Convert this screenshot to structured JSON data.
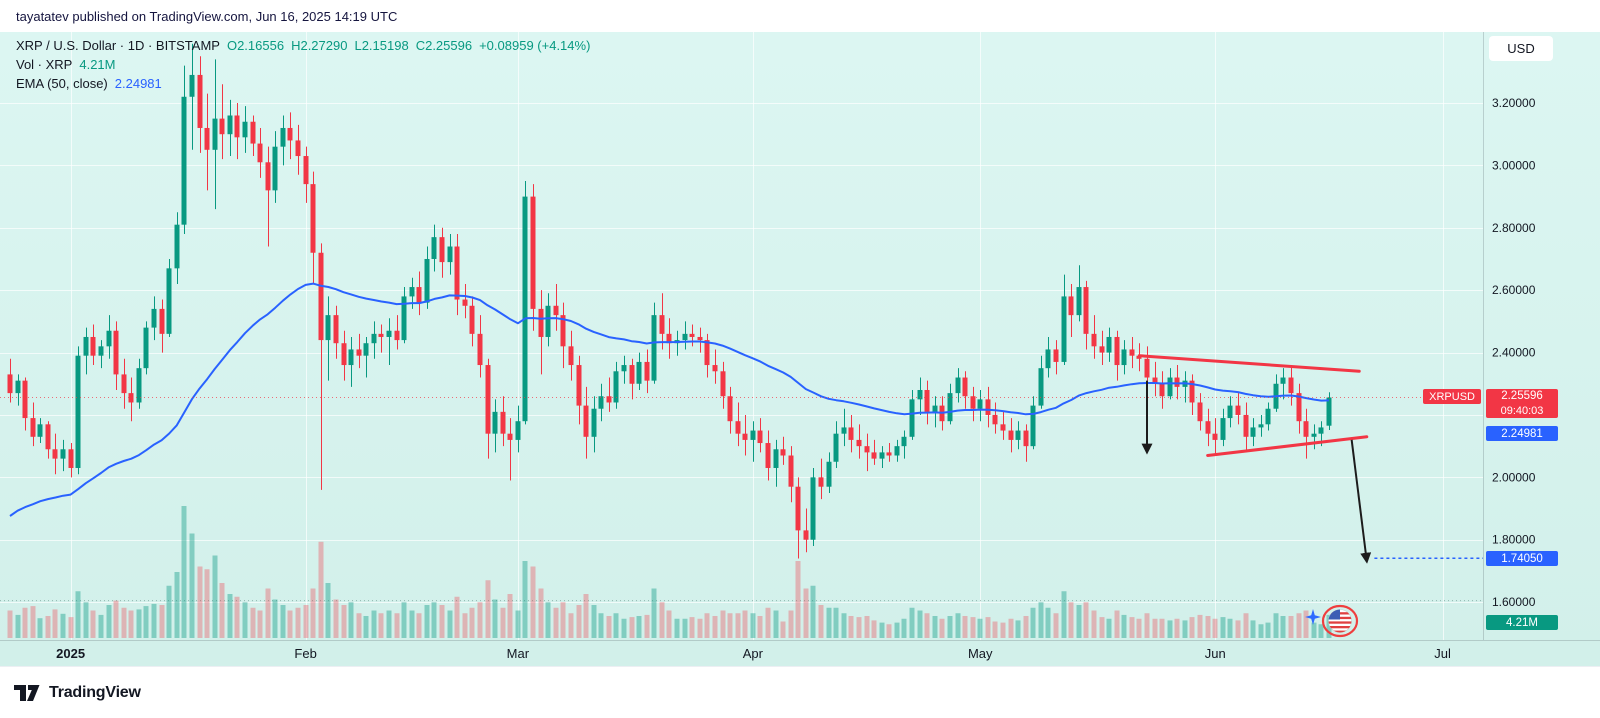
{
  "header": {
    "published_line": "tayatatev published on TradingView.com, Jun 16, 2025 14:19 UTC"
  },
  "toolbar": {
    "currency_button": "USD"
  },
  "legend": {
    "symbol_line": {
      "title": "XRP / U.S. Dollar · 1D · BITSTAMP",
      "items": [
        {
          "label": "O",
          "value": "2.16556"
        },
        {
          "label": "H",
          "value": "2.27290"
        },
        {
          "label": "L",
          "value": "2.15198"
        },
        {
          "label": "C",
          "value": "2.25596"
        }
      ],
      "change": "+0.08959 (+4.14%)"
    },
    "volume_line": {
      "label": "Vol · XRP",
      "value": "4.21M"
    },
    "ema_line": {
      "label": "EMA (50, close)",
      "value": "2.24981"
    }
  },
  "axis": {
    "labels": {
      "symbol_badge": "XRPUSD",
      "last_price": "2.25596",
      "countdown": "09:40:03",
      "ema_value": "2.24981",
      "target_price": "1.74050",
      "volume_value": "4.21M"
    }
  },
  "footer": {
    "brand": "TradingView"
  },
  "colors": {
    "up": "#089981",
    "down": "#f23645",
    "vol_up": "rgba(8,153,129,0.40)",
    "vol_down": "rgba(242,54,69,0.32)",
    "ema": "#2962ff",
    "annotation": "#f23645",
    "arrow": "#1c1c1c",
    "target": "#2962ff",
    "grid": "rgba(255,255,255,0.68)",
    "axis_text": "#131722",
    "separator": "rgba(30,40,50,0.18)",
    "last_price_line": "rgba(242,54,69,0.70)",
    "level_line": "rgba(60,110,100,0.45)"
  },
  "chart_data": {
    "type": "candlestick",
    "title": "XRP / U.S. Dollar · 1D · BITSTAMP",
    "symbol": "XRPUSD",
    "interval": "1D",
    "exchange": "BITSTAMP",
    "start_date": "2024-12-24",
    "end_date": "2025-06-16",
    "last": {
      "o": 2.16556,
      "h": 2.2729,
      "l": 2.15198,
      "c": 2.25596,
      "change": 0.08959,
      "change_pct": 4.14,
      "volume": "4.21M"
    },
    "y_axis": {
      "range": [
        1.485,
        3.402
      ],
      "ticks": [
        3.2,
        3.0,
        2.8,
        2.6,
        2.4,
        2.0,
        1.8,
        1.6
      ],
      "tick_labels": [
        "3.20000",
        "3.00000",
        "2.80000",
        "2.60000",
        "2.40000",
        "2.00000",
        "1.80000",
        "1.60000"
      ],
      "grid": [
        3.2,
        3.0,
        2.8,
        2.6,
        2.4,
        2.2,
        2.0,
        1.8,
        1.6
      ]
    },
    "x_axis": {
      "ticks": [
        {
          "label": "2025",
          "index": 8,
          "bold": true
        },
        {
          "label": "Feb",
          "index": 39
        },
        {
          "label": "Mar",
          "index": 67
        },
        {
          "label": "Apr",
          "index": 98
        },
        {
          "label": "May",
          "index": 128
        },
        {
          "label": "Jun",
          "index": 159
        },
        {
          "label": "Jul",
          "index": 189
        }
      ]
    },
    "ema": {
      "period": 50,
      "seed": 1.86,
      "last_value": 2.24981
    },
    "ohlcv": [
      [
        2.33,
        2.38,
        2.24,
        2.27,
        5.0
      ],
      [
        2.27,
        2.33,
        2.23,
        2.31,
        4.2
      ],
      [
        2.31,
        2.32,
        2.15,
        2.19,
        5.5
      ],
      [
        2.19,
        2.24,
        2.1,
        2.13,
        5.8
      ],
      [
        2.13,
        2.19,
        2.11,
        2.17,
        3.6
      ],
      [
        2.17,
        2.18,
        2.06,
        2.09,
        4.0
      ],
      [
        2.09,
        2.14,
        2.01,
        2.06,
        5.2
      ],
      [
        2.06,
        2.12,
        2.02,
        2.09,
        4.4
      ],
      [
        2.09,
        2.11,
        2.0,
        2.03,
        3.8
      ],
      [
        2.03,
        2.42,
        2.01,
        2.39,
        8.5
      ],
      [
        2.39,
        2.48,
        2.33,
        2.45,
        6.5
      ],
      [
        2.45,
        2.49,
        2.36,
        2.39,
        5.0
      ],
      [
        2.39,
        2.44,
        2.35,
        2.42,
        4.2
      ],
      [
        2.42,
        2.52,
        2.38,
        2.47,
        6.0
      ],
      [
        2.47,
        2.5,
        2.28,
        2.33,
        6.8
      ],
      [
        2.33,
        2.38,
        2.22,
        2.27,
        5.5
      ],
      [
        2.27,
        2.32,
        2.18,
        2.24,
        5.0
      ],
      [
        2.24,
        2.38,
        2.22,
        2.35,
        5.2
      ],
      [
        2.35,
        2.5,
        2.33,
        2.48,
        5.8
      ],
      [
        2.48,
        2.58,
        2.44,
        2.54,
        6.2
      ],
      [
        2.54,
        2.57,
        2.4,
        2.46,
        6.0
      ],
      [
        2.46,
        2.7,
        2.45,
        2.67,
        9.5
      ],
      [
        2.67,
        2.85,
        2.62,
        2.81,
        12.0
      ],
      [
        2.81,
        3.32,
        2.78,
        3.22,
        24.0
      ],
      [
        3.22,
        3.39,
        3.05,
        3.29,
        19.0
      ],
      [
        3.29,
        3.35,
        3.04,
        3.12,
        13.0
      ],
      [
        3.12,
        3.23,
        2.92,
        3.05,
        12.5
      ],
      [
        3.05,
        3.34,
        2.86,
        3.15,
        15.0
      ],
      [
        3.15,
        3.26,
        3.02,
        3.1,
        10.0
      ],
      [
        3.1,
        3.21,
        3.03,
        3.16,
        8.0
      ],
      [
        3.16,
        3.2,
        3.02,
        3.09,
        7.5
      ],
      [
        3.09,
        3.19,
        3.04,
        3.14,
        6.5
      ],
      [
        3.14,
        3.16,
        3.03,
        3.07,
        5.5
      ],
      [
        3.07,
        3.12,
        2.96,
        3.01,
        5.0
      ],
      [
        3.01,
        3.06,
        2.74,
        2.92,
        9.0
      ],
      [
        2.92,
        3.11,
        2.88,
        3.06,
        7.0
      ],
      [
        3.06,
        3.16,
        3.0,
        3.12,
        6.0
      ],
      [
        3.12,
        3.17,
        3.02,
        3.08,
        5.0
      ],
      [
        3.08,
        3.13,
        2.97,
        3.03,
        5.5
      ],
      [
        3.03,
        3.06,
        2.88,
        2.94,
        6.0
      ],
      [
        2.94,
        2.98,
        2.62,
        2.72,
        9.0
      ],
      [
        2.72,
        2.75,
        1.96,
        2.44,
        17.5
      ],
      [
        2.44,
        2.58,
        2.31,
        2.52,
        10.0
      ],
      [
        2.52,
        2.55,
        2.38,
        2.43,
        7.0
      ],
      [
        2.43,
        2.47,
        2.31,
        2.36,
        6.0
      ],
      [
        2.36,
        2.45,
        2.29,
        2.41,
        6.5
      ],
      [
        2.41,
        2.46,
        2.35,
        2.39,
        4.5
      ],
      [
        2.39,
        2.45,
        2.32,
        2.43,
        4.0
      ],
      [
        2.43,
        2.5,
        2.38,
        2.46,
        5.0
      ],
      [
        2.46,
        2.49,
        2.4,
        2.45,
        4.5
      ],
      [
        2.45,
        2.51,
        2.36,
        2.47,
        5.0
      ],
      [
        2.47,
        2.52,
        2.41,
        2.44,
        4.5
      ],
      [
        2.44,
        2.61,
        2.43,
        2.58,
        6.5
      ],
      [
        2.58,
        2.64,
        2.54,
        2.61,
        5.0
      ],
      [
        2.61,
        2.66,
        2.52,
        2.56,
        4.5
      ],
      [
        2.56,
        2.74,
        2.54,
        2.7,
        6.0
      ],
      [
        2.7,
        2.81,
        2.66,
        2.77,
        6.5
      ],
      [
        2.77,
        2.8,
        2.64,
        2.69,
        6.0
      ],
      [
        2.69,
        2.78,
        2.65,
        2.74,
        5.0
      ],
      [
        2.74,
        2.78,
        2.52,
        2.57,
        7.5
      ],
      [
        2.57,
        2.62,
        2.51,
        2.55,
        4.5
      ],
      [
        2.55,
        2.58,
        2.42,
        2.46,
        5.5
      ],
      [
        2.46,
        2.52,
        2.32,
        2.36,
        6.5
      ],
      [
        2.36,
        2.38,
        2.06,
        2.14,
        10.5
      ],
      [
        2.14,
        2.25,
        2.08,
        2.21,
        7.0
      ],
      [
        2.21,
        2.26,
        2.1,
        2.14,
        5.5
      ],
      [
        2.14,
        2.19,
        1.99,
        2.12,
        8.0
      ],
      [
        2.12,
        2.23,
        2.08,
        2.18,
        5.0
      ],
      [
        2.18,
        2.95,
        2.17,
        2.9,
        14.0
      ],
      [
        2.9,
        2.94,
        2.47,
        2.54,
        13.0
      ],
      [
        2.54,
        2.6,
        2.33,
        2.45,
        9.0
      ],
      [
        2.45,
        2.59,
        2.42,
        2.55,
        6.5
      ],
      [
        2.55,
        2.62,
        2.47,
        2.52,
        5.5
      ],
      [
        2.52,
        2.56,
        2.35,
        2.42,
        6.5
      ],
      [
        2.42,
        2.47,
        2.31,
        2.36,
        4.5
      ],
      [
        2.36,
        2.39,
        2.17,
        2.23,
        6.0
      ],
      [
        2.23,
        2.29,
        2.06,
        2.13,
        8.0
      ],
      [
        2.13,
        2.26,
        2.08,
        2.22,
        6.0
      ],
      [
        2.22,
        2.3,
        2.18,
        2.26,
        4.5
      ],
      [
        2.26,
        2.32,
        2.21,
        2.24,
        4.0
      ],
      [
        2.24,
        2.37,
        2.22,
        2.34,
        4.5
      ],
      [
        2.34,
        2.39,
        2.3,
        2.36,
        3.5
      ],
      [
        2.36,
        2.38,
        2.25,
        2.3,
        3.8
      ],
      [
        2.3,
        2.4,
        2.28,
        2.37,
        4.0
      ],
      [
        2.37,
        2.41,
        2.27,
        2.31,
        4.2
      ],
      [
        2.31,
        2.56,
        2.3,
        2.52,
        9.0
      ],
      [
        2.52,
        2.59,
        2.41,
        2.46,
        6.5
      ],
      [
        2.46,
        2.51,
        2.38,
        2.43,
        5.0
      ],
      [
        2.43,
        2.47,
        2.39,
        2.44,
        3.5
      ],
      [
        2.44,
        2.5,
        2.41,
        2.46,
        3.5
      ],
      [
        2.46,
        2.49,
        2.42,
        2.45,
        3.8
      ],
      [
        2.45,
        2.48,
        2.4,
        2.44,
        3.5
      ],
      [
        2.44,
        2.46,
        2.32,
        2.36,
        4.5
      ],
      [
        2.36,
        2.41,
        2.3,
        2.34,
        4.0
      ],
      [
        2.34,
        2.37,
        2.22,
        2.26,
        5.0
      ],
      [
        2.26,
        2.29,
        2.14,
        2.18,
        4.5
      ],
      [
        2.18,
        2.24,
        2.1,
        2.14,
        4.5
      ],
      [
        2.14,
        2.2,
        2.07,
        2.12,
        5.0
      ],
      [
        2.12,
        2.18,
        2.05,
        2.15,
        4.5
      ],
      [
        2.15,
        2.19,
        2.08,
        2.11,
        4.0
      ],
      [
        2.11,
        2.15,
        1.99,
        2.03,
        5.5
      ],
      [
        2.03,
        2.12,
        1.97,
        2.09,
        5.0
      ],
      [
        2.09,
        2.13,
        2.04,
        2.07,
        3.0
      ],
      [
        2.07,
        2.1,
        1.92,
        1.97,
        5.0
      ],
      [
        1.97,
        2.0,
        1.74,
        1.83,
        14.0
      ],
      [
        1.83,
        1.9,
        1.76,
        1.8,
        9.0
      ],
      [
        1.8,
        2.03,
        1.78,
        2.0,
        9.5
      ],
      [
        2.0,
        2.06,
        1.93,
        1.97,
        6.0
      ],
      [
        1.97,
        2.08,
        1.95,
        2.05,
        5.5
      ],
      [
        2.05,
        2.18,
        2.03,
        2.14,
        5.5
      ],
      [
        2.14,
        2.22,
        2.1,
        2.16,
        4.5
      ],
      [
        2.16,
        2.2,
        2.08,
        2.12,
        4.0
      ],
      [
        2.12,
        2.17,
        2.06,
        2.1,
        3.8
      ],
      [
        2.1,
        2.14,
        2.02,
        2.08,
        4.0
      ],
      [
        2.08,
        2.12,
        2.04,
        2.06,
        3.2
      ],
      [
        2.06,
        2.1,
        2.03,
        2.08,
        2.8
      ],
      [
        2.08,
        2.11,
        2.05,
        2.07,
        2.5
      ],
      [
        2.07,
        2.12,
        2.05,
        2.1,
        2.8
      ],
      [
        2.1,
        2.15,
        2.06,
        2.13,
        3.5
      ],
      [
        2.13,
        2.28,
        2.12,
        2.25,
        5.5
      ],
      [
        2.25,
        2.32,
        2.2,
        2.28,
        5.0
      ],
      [
        2.28,
        2.31,
        2.17,
        2.21,
        4.5
      ],
      [
        2.21,
        2.26,
        2.16,
        2.23,
        4.0
      ],
      [
        2.23,
        2.26,
        2.15,
        2.18,
        3.5
      ],
      [
        2.18,
        2.3,
        2.17,
        2.27,
        4.0
      ],
      [
        2.27,
        2.35,
        2.24,
        2.32,
        4.5
      ],
      [
        2.32,
        2.34,
        2.22,
        2.26,
        4.0
      ],
      [
        2.26,
        2.29,
        2.18,
        2.22,
        3.8
      ],
      [
        2.22,
        2.28,
        2.18,
        2.25,
        3.5
      ],
      [
        2.25,
        2.29,
        2.16,
        2.2,
        3.8
      ],
      [
        2.2,
        2.24,
        2.14,
        2.17,
        3.0
      ],
      [
        2.17,
        2.21,
        2.12,
        2.15,
        2.8
      ],
      [
        2.15,
        2.19,
        2.08,
        2.12,
        3.5
      ],
      [
        2.12,
        2.18,
        2.09,
        2.15,
        3.2
      ],
      [
        2.15,
        2.17,
        2.05,
        2.1,
        4.0
      ],
      [
        2.1,
        2.26,
        2.09,
        2.23,
        5.5
      ],
      [
        2.23,
        2.39,
        2.22,
        2.35,
        6.5
      ],
      [
        2.35,
        2.45,
        2.32,
        2.41,
        5.5
      ],
      [
        2.41,
        2.44,
        2.33,
        2.37,
        4.5
      ],
      [
        2.37,
        2.65,
        2.36,
        2.58,
        8.5
      ],
      [
        2.58,
        2.62,
        2.45,
        2.52,
        6.5
      ],
      [
        2.52,
        2.68,
        2.5,
        2.61,
        6.0
      ],
      [
        2.61,
        2.63,
        2.41,
        2.46,
        6.5
      ],
      [
        2.46,
        2.52,
        2.38,
        2.42,
        5.0
      ],
      [
        2.42,
        2.47,
        2.36,
        2.4,
        3.8
      ],
      [
        2.4,
        2.48,
        2.37,
        2.45,
        3.5
      ],
      [
        2.45,
        2.47,
        2.31,
        2.36,
        5.0
      ],
      [
        2.36,
        2.44,
        2.33,
        2.41,
        4.2
      ],
      [
        2.41,
        2.45,
        2.35,
        2.39,
        3.8
      ],
      [
        2.39,
        2.43,
        2.34,
        2.38,
        3.5
      ],
      [
        2.38,
        2.42,
        2.28,
        2.32,
        4.5
      ],
      [
        2.32,
        2.37,
        2.26,
        2.3,
        3.5
      ],
      [
        2.3,
        2.34,
        2.22,
        2.26,
        3.5
      ],
      [
        2.26,
        2.35,
        2.25,
        2.32,
        3.2
      ],
      [
        2.32,
        2.36,
        2.25,
        2.29,
        3.5
      ],
      [
        2.29,
        2.34,
        2.24,
        2.31,
        3.2
      ],
      [
        2.31,
        2.33,
        2.2,
        2.24,
        3.8
      ],
      [
        2.24,
        2.27,
        2.15,
        2.18,
        4.2
      ],
      [
        2.18,
        2.22,
        2.1,
        2.14,
        4.0
      ],
      [
        2.14,
        2.19,
        2.07,
        2.12,
        3.5
      ],
      [
        2.12,
        2.22,
        2.1,
        2.19,
        3.8
      ],
      [
        2.19,
        2.26,
        2.16,
        2.23,
        3.5
      ],
      [
        2.23,
        2.27,
        2.17,
        2.2,
        3.2
      ],
      [
        2.2,
        2.24,
        2.08,
        2.13,
        4.5
      ],
      [
        2.13,
        2.19,
        2.1,
        2.16,
        3.2
      ],
      [
        2.16,
        2.2,
        2.13,
        2.17,
        2.5
      ],
      [
        2.17,
        2.24,
        2.15,
        2.22,
        2.8
      ],
      [
        2.22,
        2.33,
        2.21,
        2.3,
        4.5
      ],
      [
        2.3,
        2.35,
        2.25,
        2.32,
        4.0
      ],
      [
        2.32,
        2.36,
        2.23,
        2.27,
        4.0
      ],
      [
        2.27,
        2.3,
        2.14,
        2.18,
        4.5
      ],
      [
        2.18,
        2.22,
        2.06,
        2.13,
        5.0
      ],
      [
        2.13,
        2.17,
        2.09,
        2.14,
        2.8
      ],
      [
        2.14,
        2.18,
        2.1,
        2.16,
        2.5
      ],
      [
        2.16556,
        2.2729,
        2.15198,
        2.25596,
        4.21
      ]
    ],
    "annotations": {
      "trendlines": [
        {
          "name": "upper-resistance-trendline",
          "i1": 149,
          "p1": 2.39,
          "i2": 178,
          "p2": 2.34
        },
        {
          "name": "lower-support-trendline",
          "i1": 158,
          "p1": 2.07,
          "i2": 179,
          "p2": 2.13
        }
      ],
      "arrows": [
        {
          "name": "breakdown-arrow",
          "i1": 150,
          "p1": 2.31,
          "i2": 150,
          "p2": 2.08
        },
        {
          "name": "target-arrow",
          "i1": 177,
          "p1": 2.12,
          "i2": 179,
          "p2": 1.73
        }
      ],
      "target_line": {
        "price": 1.7405,
        "label": "1.74050",
        "from_i": 180
      },
      "last_price_line": {
        "price": 2.25596
      },
      "level_line": {
        "price": 1.605
      }
    }
  }
}
